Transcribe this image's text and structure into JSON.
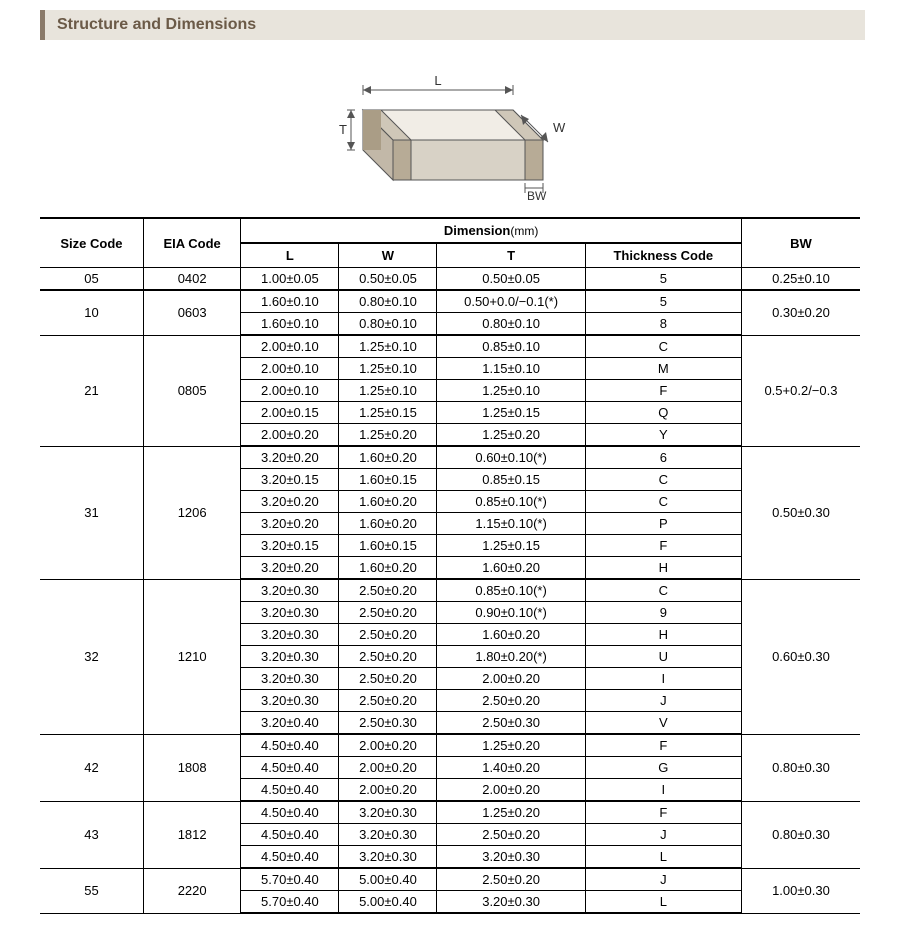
{
  "section_title": "Structure and Dimensions",
  "diagram": {
    "labels": {
      "L": "L",
      "W": "W",
      "T": "T",
      "BW": "BW"
    },
    "stroke": "#555555",
    "fill_top": "#f1ede6",
    "fill_side": "#d8d2c6",
    "fill_end": "#c2b8a8"
  },
  "table": {
    "header": {
      "size_code": "Size Code",
      "eia_code": "EIA Code",
      "dimension": "Dimension",
      "unit": "(mm)",
      "L": "L",
      "W": "W",
      "T": "T",
      "thickness_code": "Thickness Code",
      "BW": "BW"
    },
    "groups": [
      {
        "size": "05",
        "eia": "0402",
        "bw": "0.25±0.10",
        "rows": [
          {
            "L": "1.00±0.05",
            "W": "0.50±0.05",
            "T": "0.50±0.05",
            "tc": "5"
          }
        ]
      },
      {
        "size": "10",
        "eia": "0603",
        "bw": "0.30±0.20",
        "rows": [
          {
            "L": "1.60±0.10",
            "W": "0.80±0.10",
            "T": "0.50+0.0/−0.1(*)",
            "tc": "5"
          },
          {
            "L": "1.60±0.10",
            "W": "0.80±0.10",
            "T": "0.80±0.10",
            "tc": "8"
          }
        ]
      },
      {
        "size": "21",
        "eia": "0805",
        "bw": "0.5+0.2/−0.3",
        "rows": [
          {
            "L": "2.00±0.10",
            "W": "1.25±0.10",
            "T": "0.85±0.10",
            "tc": "C"
          },
          {
            "L": "2.00±0.10",
            "W": "1.25±0.10",
            "T": "1.15±0.10",
            "tc": "M"
          },
          {
            "L": "2.00±0.10",
            "W": "1.25±0.10",
            "T": "1.25±0.10",
            "tc": "F"
          },
          {
            "L": "2.00±0.15",
            "W": "1.25±0.15",
            "T": "1.25±0.15",
            "tc": "Q"
          },
          {
            "L": "2.00±0.20",
            "W": "1.25±0.20",
            "T": "1.25±0.20",
            "tc": "Y"
          }
        ]
      },
      {
        "size": "31",
        "eia": "1206",
        "bw": "0.50±0.30",
        "rows": [
          {
            "L": "3.20±0.20",
            "W": "1.60±0.20",
            "T": "0.60±0.10(*)",
            "tc": "6"
          },
          {
            "L": "3.20±0.15",
            "W": "1.60±0.15",
            "T": "0.85±0.15",
            "tc": "C"
          },
          {
            "L": "3.20±0.20",
            "W": "1.60±0.20",
            "T": "0.85±0.10(*)",
            "tc": "C"
          },
          {
            "L": "3.20±0.20",
            "W": "1.60±0.20",
            "T": "1.15±0.10(*)",
            "tc": "P"
          },
          {
            "L": "3.20±0.15",
            "W": "1.60±0.15",
            "T": "1.25±0.15",
            "tc": "F"
          },
          {
            "L": "3.20±0.20",
            "W": "1.60±0.20",
            "T": "1.60±0.20",
            "tc": "H"
          }
        ]
      },
      {
        "size": "32",
        "eia": "1210",
        "bw": "0.60±0.30",
        "rows": [
          {
            "L": "3.20±0.30",
            "W": "2.50±0.20",
            "T": "0.85±0.10(*)",
            "tc": "C"
          },
          {
            "L": "3.20±0.30",
            "W": "2.50±0.20",
            "T": "0.90±0.10(*)",
            "tc": "9"
          },
          {
            "L": "3.20±0.30",
            "W": "2.50±0.20",
            "T": "1.60±0.20",
            "tc": "H"
          },
          {
            "L": "3.20±0.30",
            "W": "2.50±0.20",
            "T": "1.80±0.20(*)",
            "tc": "U"
          },
          {
            "L": "3.20±0.30",
            "W": "2.50±0.20",
            "T": "2.00±0.20",
            "tc": "I"
          },
          {
            "L": "3.20±0.30",
            "W": "2.50±0.20",
            "T": "2.50±0.20",
            "tc": "J"
          },
          {
            "L": "3.20±0.40",
            "W": "2.50±0.30",
            "T": "2.50±0.30",
            "tc": "V"
          }
        ]
      },
      {
        "size": "42",
        "eia": "1808",
        "bw": "0.80±0.30",
        "rows": [
          {
            "L": "4.50±0.40",
            "W": "2.00±0.20",
            "T": "1.25±0.20",
            "tc": "F"
          },
          {
            "L": "4.50±0.40",
            "W": "2.00±0.20",
            "T": "1.40±0.20",
            "tc": "G"
          },
          {
            "L": "4.50±0.40",
            "W": "2.00±0.20",
            "T": "2.00±0.20",
            "tc": "I"
          }
        ]
      },
      {
        "size": "43",
        "eia": "1812",
        "bw": "0.80±0.30",
        "rows": [
          {
            "L": "4.50±0.40",
            "W": "3.20±0.30",
            "T": "1.25±0.20",
            "tc": "F"
          },
          {
            "L": "4.50±0.40",
            "W": "3.20±0.30",
            "T": "2.50±0.20",
            "tc": "J"
          },
          {
            "L": "4.50±0.40",
            "W": "3.20±0.30",
            "T": "3.20±0.30",
            "tc": "L"
          }
        ]
      },
      {
        "size": "55",
        "eia": "2220",
        "bw": "1.00±0.30",
        "rows": [
          {
            "L": "5.70±0.40",
            "W": "5.00±0.40",
            "T": "2.50±0.20",
            "tc": "J"
          },
          {
            "L": "5.70±0.40",
            "W": "5.00±0.40",
            "T": "3.20±0.30",
            "tc": "L"
          }
        ]
      }
    ]
  }
}
